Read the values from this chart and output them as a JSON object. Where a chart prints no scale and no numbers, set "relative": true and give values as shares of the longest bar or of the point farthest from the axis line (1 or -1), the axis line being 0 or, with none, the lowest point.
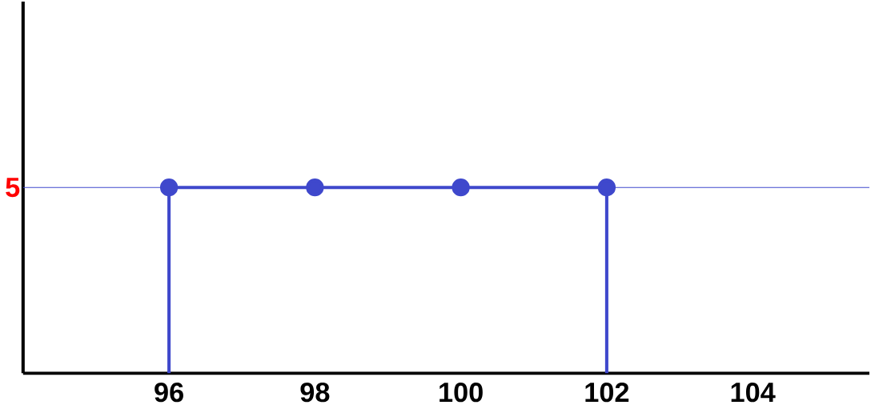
{
  "chart_data": {
    "type": "line",
    "relative": true,
    "xlim": [
      94,
      105.6
    ],
    "xticks": [
      96,
      98,
      100,
      102,
      104
    ],
    "marker": "circle",
    "series": [
      {
        "color": "#3f48cc",
        "x": [
          96,
          98,
          100,
          102
        ],
        "values": [
          1,
          1,
          1,
          1
        ]
      },
      {
        "color": "#3f48cc",
        "x": [
          96,
          96
        ],
        "values": [
          0,
          1
        ],
        "marker": "none"
      },
      {
        "color": "#3f48cc",
        "x": [
          102,
          102
        ],
        "values": [
          0,
          1
        ],
        "marker": "none"
      }
    ],
    "ref_lines": [
      {
        "axis": "y",
        "value": 1,
        "color": "#3f48cc"
      }
    ],
    "annotations": [
      "5"
    ]
  }
}
